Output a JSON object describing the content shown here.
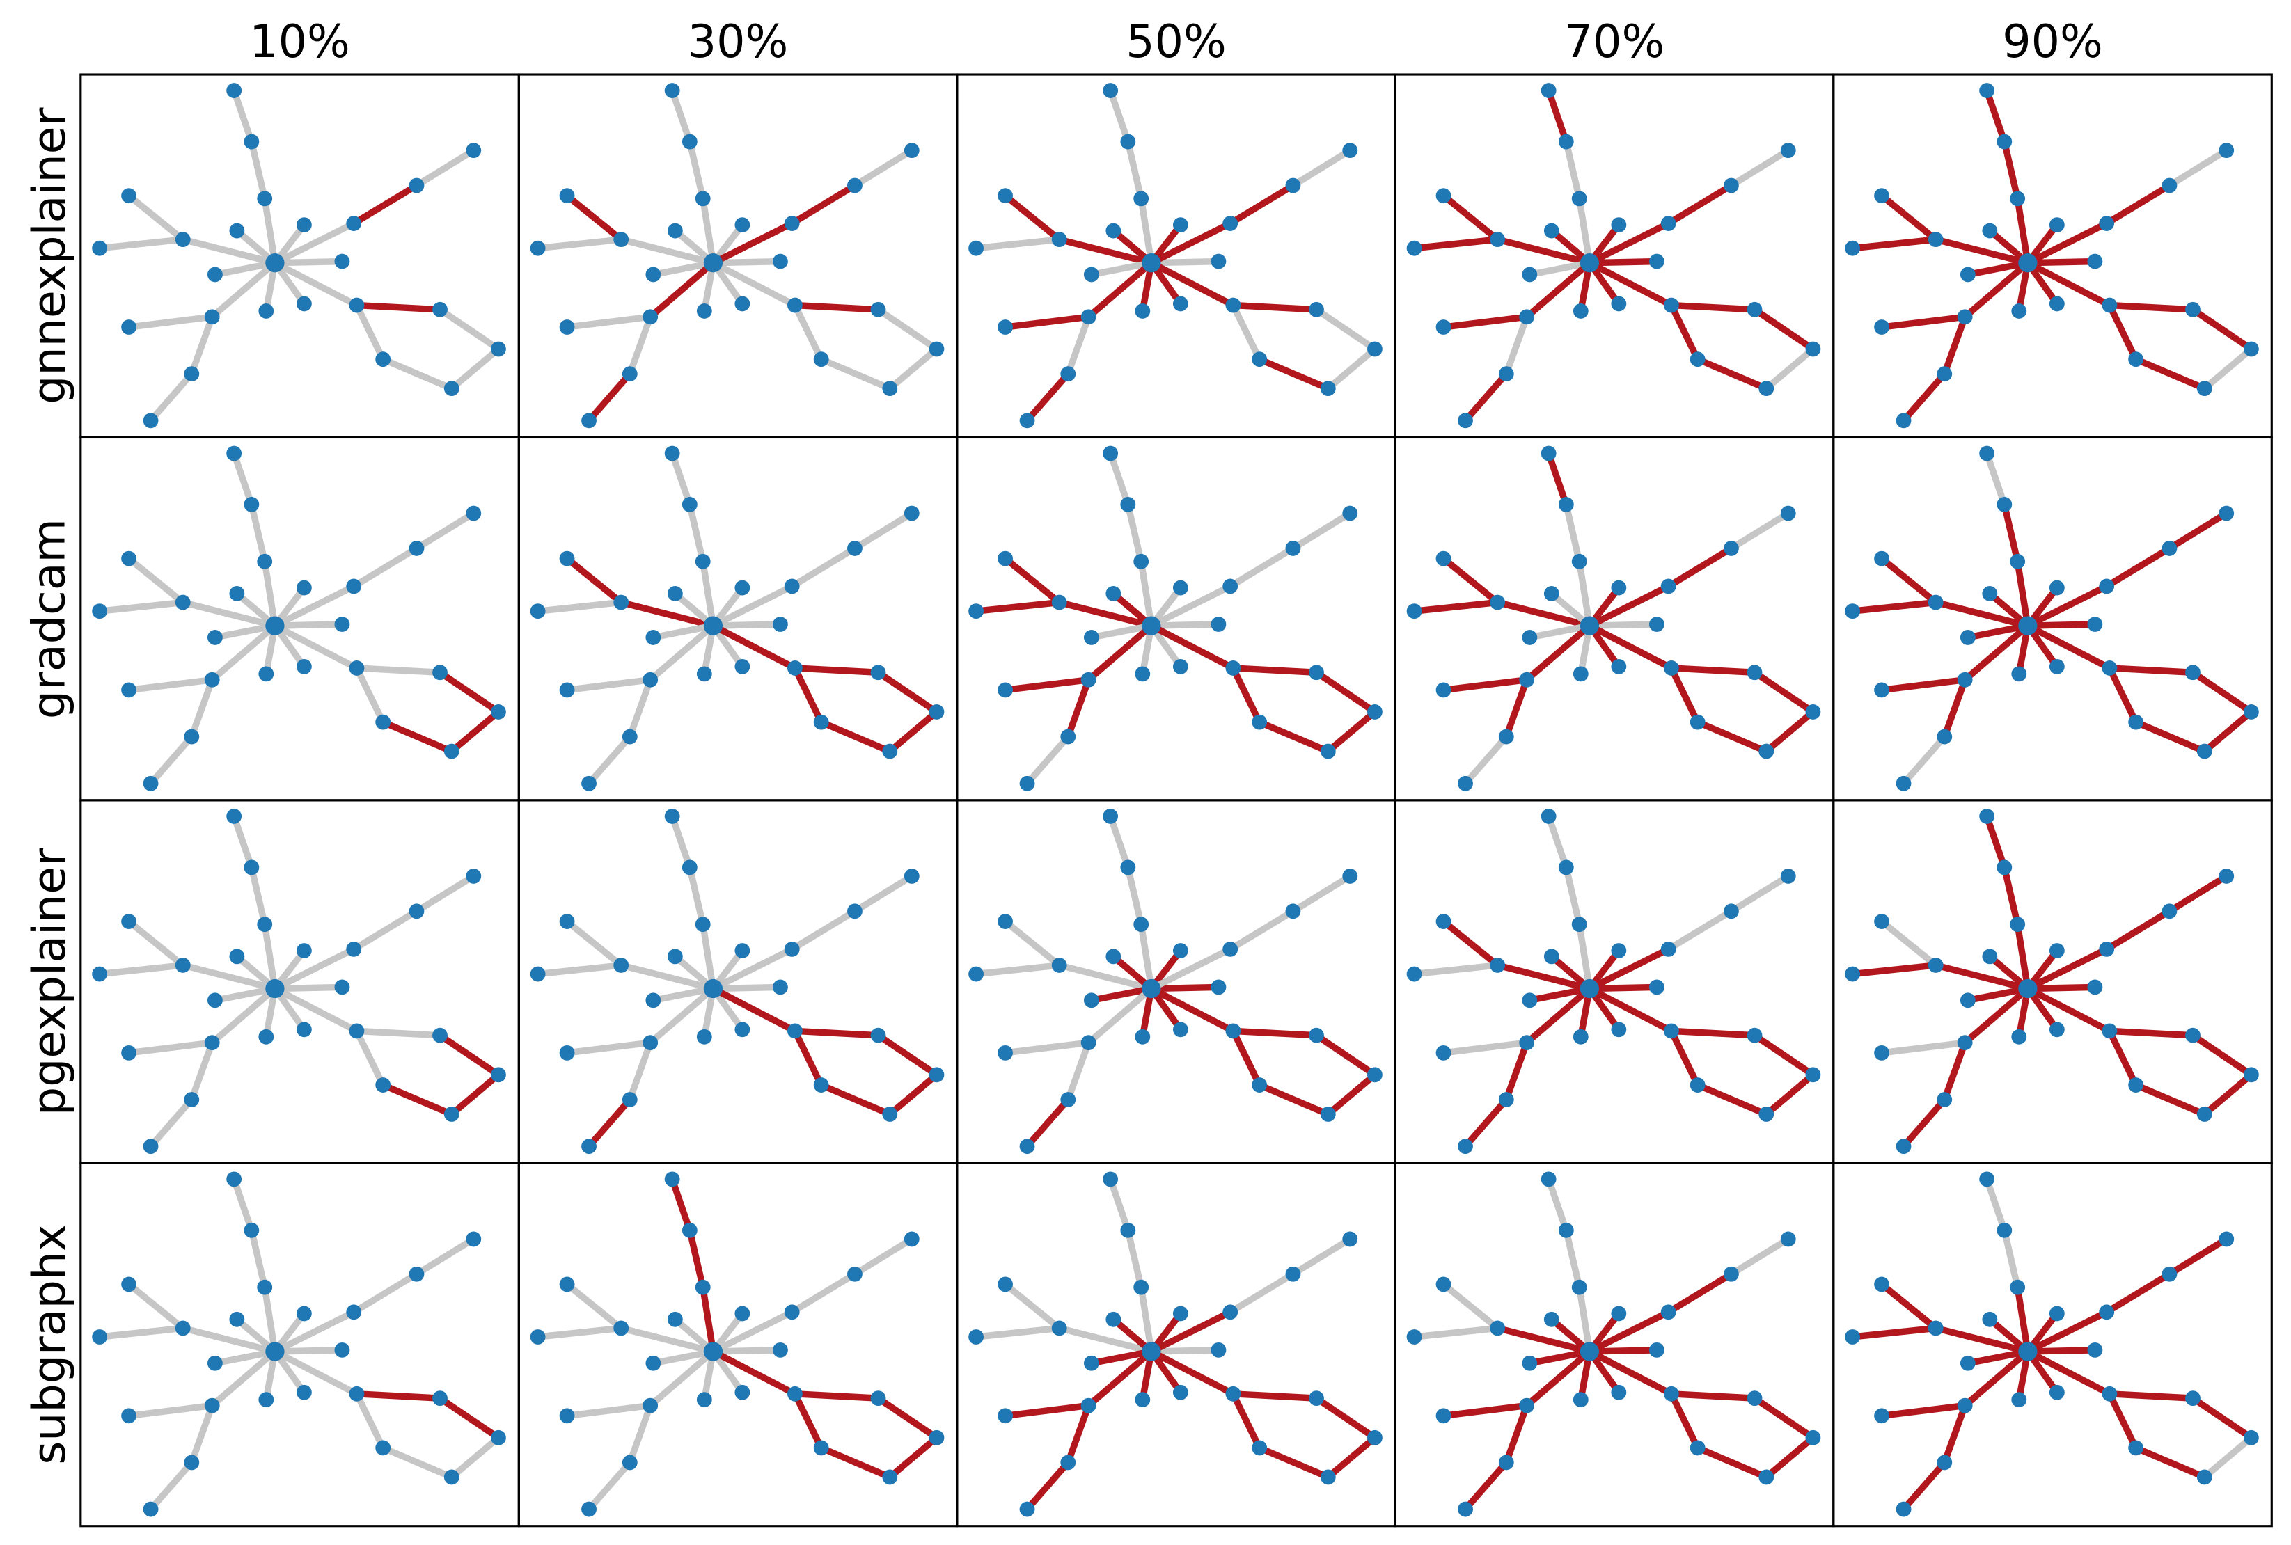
{
  "columns": [
    "10%",
    "30%",
    "50%",
    "70%",
    "90%"
  ],
  "rows": [
    {
      "label": "gnnexplainer",
      "highlighted": [
        [
          0,
          0,
          0,
          0,
          0,
          0,
          0,
          0,
          0,
          0,
          0,
          0,
          0,
          1,
          0,
          0,
          1,
          0,
          0,
          0,
          0,
          0,
          0,
          0,
          0
        ],
        [
          0,
          0,
          0,
          1,
          0,
          0,
          0,
          0,
          0,
          0,
          0,
          0,
          1,
          1,
          0,
          0,
          1,
          0,
          0,
          0,
          0,
          1,
          0,
          0,
          1
        ],
        [
          0,
          0,
          0,
          1,
          1,
          0,
          1,
          0,
          1,
          0,
          1,
          1,
          1,
          1,
          0,
          1,
          1,
          0,
          0,
          1,
          0,
          1,
          1,
          0,
          1
        ],
        [
          1,
          0,
          0,
          1,
          1,
          1,
          1,
          0,
          1,
          1,
          1,
          1,
          1,
          1,
          0,
          1,
          1,
          1,
          0,
          1,
          1,
          1,
          1,
          0,
          1
        ],
        [
          1,
          1,
          1,
          1,
          1,
          1,
          1,
          1,
          1,
          1,
          1,
          1,
          1,
          1,
          0,
          1,
          1,
          1,
          0,
          1,
          1,
          1,
          1,
          1,
          1
        ]
      ]
    },
    {
      "label": "gradcam",
      "highlighted": [
        [
          0,
          0,
          0,
          0,
          0,
          0,
          0,
          0,
          0,
          0,
          0,
          0,
          0,
          0,
          0,
          0,
          0,
          1,
          1,
          1,
          0,
          0,
          0,
          0,
          0
        ],
        [
          0,
          0,
          0,
          1,
          1,
          0,
          0,
          0,
          0,
          0,
          0,
          0,
          0,
          0,
          0,
          1,
          1,
          1,
          1,
          1,
          1,
          0,
          0,
          0,
          0
        ],
        [
          0,
          0,
          0,
          1,
          1,
          1,
          1,
          0,
          0,
          0,
          0,
          0,
          0,
          0,
          0,
          1,
          1,
          1,
          1,
          1,
          1,
          1,
          1,
          1,
          0
        ],
        [
          1,
          0,
          0,
          1,
          1,
          1,
          0,
          0,
          1,
          0,
          1,
          0,
          1,
          1,
          0,
          1,
          1,
          1,
          1,
          1,
          1,
          1,
          1,
          1,
          0
        ],
        [
          0,
          1,
          1,
          1,
          1,
          1,
          1,
          1,
          1,
          1,
          1,
          1,
          1,
          1,
          1,
          1,
          1,
          1,
          1,
          1,
          1,
          1,
          1,
          1,
          0
        ]
      ]
    },
    {
      "label": "pgexplainer",
      "highlighted": [
        [
          0,
          0,
          0,
          0,
          0,
          0,
          0,
          0,
          0,
          0,
          0,
          0,
          0,
          0,
          0,
          0,
          0,
          1,
          1,
          1,
          0,
          0,
          0,
          0,
          0
        ],
        [
          0,
          0,
          0,
          0,
          0,
          0,
          0,
          0,
          0,
          0,
          0,
          0,
          0,
          0,
          0,
          1,
          1,
          1,
          1,
          1,
          1,
          0,
          0,
          0,
          1
        ],
        [
          0,
          0,
          0,
          0,
          0,
          0,
          1,
          1,
          1,
          1,
          1,
          1,
          0,
          0,
          0,
          1,
          1,
          1,
          1,
          1,
          1,
          0,
          0,
          0,
          1
        ],
        [
          0,
          0,
          0,
          1,
          1,
          0,
          1,
          1,
          1,
          1,
          1,
          1,
          1,
          0,
          0,
          1,
          1,
          1,
          1,
          1,
          1,
          1,
          0,
          1,
          1
        ],
        [
          1,
          1,
          1,
          0,
          1,
          1,
          1,
          1,
          1,
          1,
          1,
          1,
          1,
          1,
          1,
          1,
          1,
          1,
          1,
          1,
          1,
          1,
          0,
          1,
          1
        ]
      ]
    },
    {
      "label": "subgraphx",
      "highlighted": [
        [
          0,
          0,
          0,
          0,
          0,
          0,
          0,
          0,
          0,
          0,
          0,
          0,
          0,
          0,
          0,
          0,
          1,
          1,
          0,
          0,
          0,
          0,
          0,
          0,
          0
        ],
        [
          1,
          1,
          1,
          0,
          0,
          0,
          0,
          0,
          0,
          0,
          0,
          0,
          0,
          0,
          0,
          1,
          1,
          1,
          1,
          1,
          1,
          0,
          0,
          0,
          0
        ],
        [
          0,
          0,
          0,
          0,
          0,
          0,
          1,
          1,
          1,
          0,
          1,
          1,
          1,
          0,
          0,
          1,
          1,
          1,
          1,
          1,
          1,
          1,
          1,
          1,
          1
        ],
        [
          0,
          0,
          0,
          0,
          1,
          0,
          1,
          1,
          1,
          1,
          1,
          1,
          1,
          1,
          0,
          1,
          1,
          1,
          1,
          1,
          1,
          1,
          1,
          1,
          1
        ],
        [
          0,
          0,
          1,
          1,
          1,
          1,
          1,
          1,
          1,
          1,
          1,
          1,
          1,
          1,
          1,
          1,
          1,
          1,
          0,
          1,
          1,
          1,
          1,
          1,
          1
        ]
      ]
    }
  ]
}
